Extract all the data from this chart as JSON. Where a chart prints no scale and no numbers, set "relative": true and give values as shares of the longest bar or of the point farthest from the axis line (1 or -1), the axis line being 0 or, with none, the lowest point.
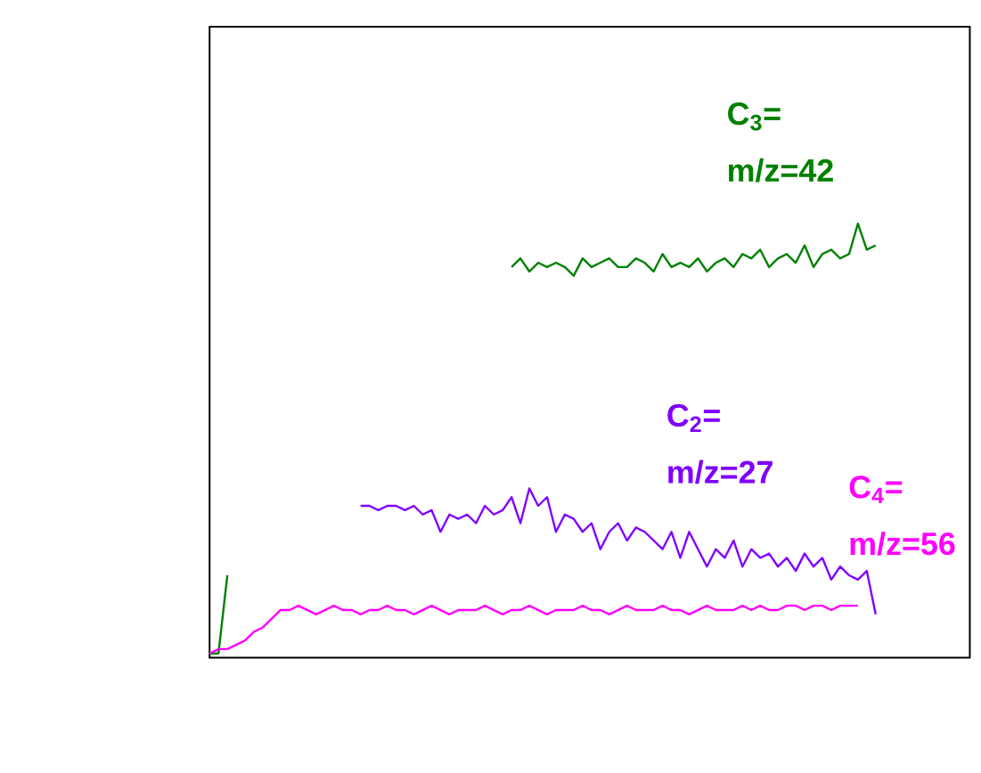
{
  "chart_data": {
    "type": "line",
    "relative": true,
    "categories": [
      null,
      null,
      null,
      null,
      null,
      null,
      null,
      null,
      null,
      null,
      null,
      null,
      null,
      null,
      null,
      null,
      null,
      null,
      null,
      null,
      null,
      null,
      null,
      null,
      null,
      null,
      null,
      null,
      null,
      null,
      null,
      null,
      null,
      null,
      null,
      null,
      null,
      null,
      null,
      null,
      null,
      null,
      null,
      null,
      null,
      null,
      null,
      null,
      null,
      null,
      null,
      null,
      null,
      null,
      null,
      null,
      null,
      null,
      null,
      null,
      null,
      null,
      null,
      null,
      null,
      null,
      null,
      null,
      null,
      null,
      null,
      null,
      null,
      null,
      null,
      null,
      null,
      null,
      null,
      null,
      null,
      null,
      null,
      null,
      null,
      null
    ],
    "series": [
      {
        "name": "C$_{3}$= m/z=42",
        "color": "#008000",
        "values": [
          0.01,
          0.01,
          0.19,
          null,
          null,
          null,
          null,
          null,
          null,
          null,
          null,
          null,
          null,
          null,
          null,
          null,
          null,
          null,
          null,
          null,
          null,
          null,
          null,
          null,
          null,
          null,
          null,
          null,
          null,
          null,
          null,
          null,
          null,
          null,
          0.9,
          0.92,
          0.89,
          0.91,
          0.9,
          0.91,
          0.9,
          0.88,
          0.92,
          0.9,
          0.91,
          0.92,
          0.9,
          0.9,
          0.92,
          0.91,
          0.89,
          0.93,
          0.9,
          0.91,
          0.9,
          0.92,
          0.89,
          0.91,
          0.92,
          0.9,
          0.93,
          0.92,
          0.94,
          0.9,
          0.92,
          0.93,
          0.91,
          0.95,
          0.9,
          0.93,
          0.94,
          0.92,
          0.93,
          1.0,
          0.94,
          0.95,
          null,
          null,
          null,
          null,
          null,
          null,
          null,
          null,
          null,
          null
        ]
      },
      {
        "name": "C$_{2}$= m/z=27",
        "color": "#8000ff",
        "values": [
          null,
          null,
          null,
          null,
          null,
          null,
          null,
          null,
          null,
          null,
          null,
          null,
          null,
          null,
          null,
          null,
          null,
          0.35,
          0.35,
          0.34,
          0.35,
          0.35,
          0.34,
          0.35,
          0.33,
          0.34,
          0.29,
          0.33,
          0.32,
          0.33,
          0.31,
          0.35,
          0.33,
          0.34,
          0.37,
          0.31,
          0.39,
          0.35,
          0.37,
          0.29,
          0.33,
          0.32,
          0.29,
          0.31,
          0.25,
          0.29,
          0.31,
          0.27,
          0.3,
          0.29,
          0.27,
          0.25,
          0.29,
          0.23,
          0.29,
          0.25,
          0.21,
          0.25,
          0.23,
          0.27,
          0.21,
          0.25,
          0.23,
          0.24,
          0.21,
          0.23,
          0.2,
          0.24,
          0.21,
          0.23,
          0.18,
          0.21,
          0.19,
          0.18,
          0.2,
          0.1,
          null,
          null,
          null,
          null,
          null,
          null,
          null,
          null,
          null,
          null
        ]
      },
      {
        "name": "C$_{4}$= m/z=56",
        "color": "#ff00ff",
        "values": [
          0.01,
          0.02,
          0.02,
          0.03,
          0.04,
          0.06,
          0.07,
          0.09,
          0.11,
          0.11,
          0.12,
          0.11,
          0.1,
          0.11,
          0.12,
          0.11,
          0.11,
          0.1,
          0.11,
          0.11,
          0.12,
          0.11,
          0.11,
          0.1,
          0.11,
          0.12,
          0.11,
          0.1,
          0.11,
          0.11,
          0.11,
          0.12,
          0.11,
          0.1,
          0.11,
          0.11,
          0.12,
          0.11,
          0.1,
          0.11,
          0.11,
          0.11,
          0.12,
          0.11,
          0.11,
          0.1,
          0.11,
          0.12,
          0.11,
          0.11,
          0.11,
          0.12,
          0.11,
          0.11,
          0.1,
          0.11,
          0.12,
          0.11,
          0.11,
          0.11,
          0.12,
          0.11,
          0.12,
          0.11,
          0.11,
          0.12,
          0.12,
          0.11,
          0.12,
          0.12,
          0.11,
          0.12,
          0.12,
          0.12,
          null,
          null,
          null,
          null,
          null,
          null,
          null,
          null,
          null,
          null,
          null,
          null
        ]
      }
    ]
  }
}
